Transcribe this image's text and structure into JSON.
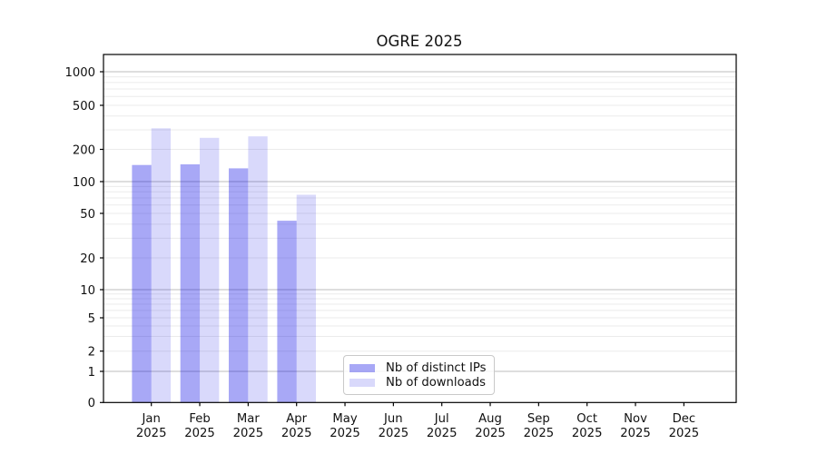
{
  "title": "OGRE 2025",
  "chart_data": {
    "type": "bar",
    "title": "OGRE 2025",
    "categories": [
      "Jan 2025",
      "Feb 2025",
      "Mar 2025",
      "Apr 2025",
      "May 2025",
      "Jun 2025",
      "Jul 2025",
      "Aug 2025",
      "Sep 2025",
      "Oct 2025",
      "Nov 2025",
      "Dec 2025"
    ],
    "series": [
      {
        "name": "Nb of distinct IPs",
        "color": "#0000e6",
        "alpha": 0.34,
        "values": [
          143,
          145,
          133,
          43,
          null,
          null,
          null,
          null,
          null,
          null,
          null,
          null
        ]
      },
      {
        "name": "Nb of downloads",
        "color": "#0000e6",
        "alpha": 0.15,
        "values": [
          310,
          254,
          262,
          75,
          null,
          null,
          null,
          null,
          null,
          null,
          null,
          null
        ]
      }
    ],
    "xlabel": "",
    "ylabel": "",
    "y_scale": "symlog",
    "y_ticks": [
      0,
      1,
      2,
      5,
      10,
      20,
      50,
      100,
      200,
      500,
      1000
    ],
    "ylim": [
      0,
      1500
    ],
    "grid": true,
    "legend_position": "lower center",
    "colors": {
      "background": "#ffffff",
      "axis": "#000000",
      "grid_major": "#bdbdbd",
      "grid_minor": "#ebebeb",
      "text": "#111111"
    }
  }
}
